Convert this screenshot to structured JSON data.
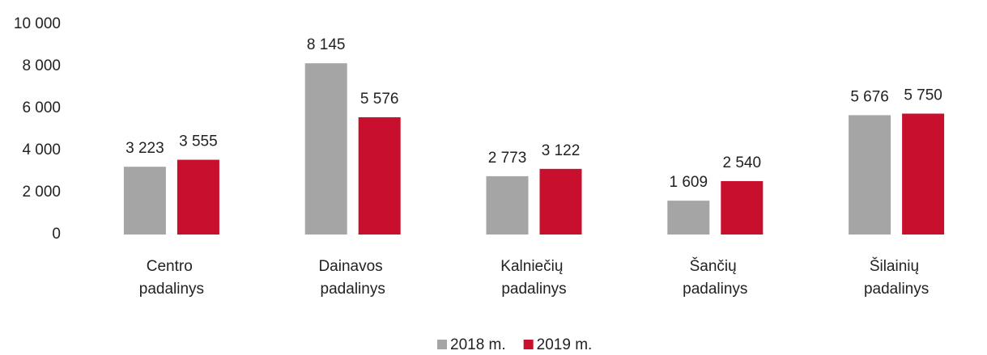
{
  "chart_data": {
    "type": "bar",
    "categories": [
      "Centro padalinys",
      "Dainavos padalinys",
      "Kalniečių padalinys",
      "Šančių padalinys",
      "Šilainių padalinys"
    ],
    "series": [
      {
        "name": "2018 m.",
        "color": "#a5a5a5",
        "values": [
          3223,
          8145,
          2773,
          1609,
          5676
        ],
        "value_labels": [
          "3 223",
          "8 145",
          "2 773",
          "1 609",
          "5 676"
        ]
      },
      {
        "name": "2019 m.",
        "color": "#c8102e",
        "values": [
          3555,
          5576,
          3122,
          2540,
          5750
        ],
        "value_labels": [
          "3 555",
          "5 576",
          "3 122",
          "2 540",
          "5 750"
        ]
      }
    ],
    "ylim": [
      0,
      10000
    ],
    "yticks": [
      0,
      {
        "value": 2000,
        "label": "2 000"
      },
      {
        "value": 4000,
        "label": "4 000"
      },
      {
        "value": 6000,
        "label": "6 000"
      },
      {
        "value": 8000,
        "label": "8 000"
      },
      {
        "value": 10000,
        "label": "10 000"
      }
    ],
    "grid": false,
    "legend": "bottom"
  }
}
